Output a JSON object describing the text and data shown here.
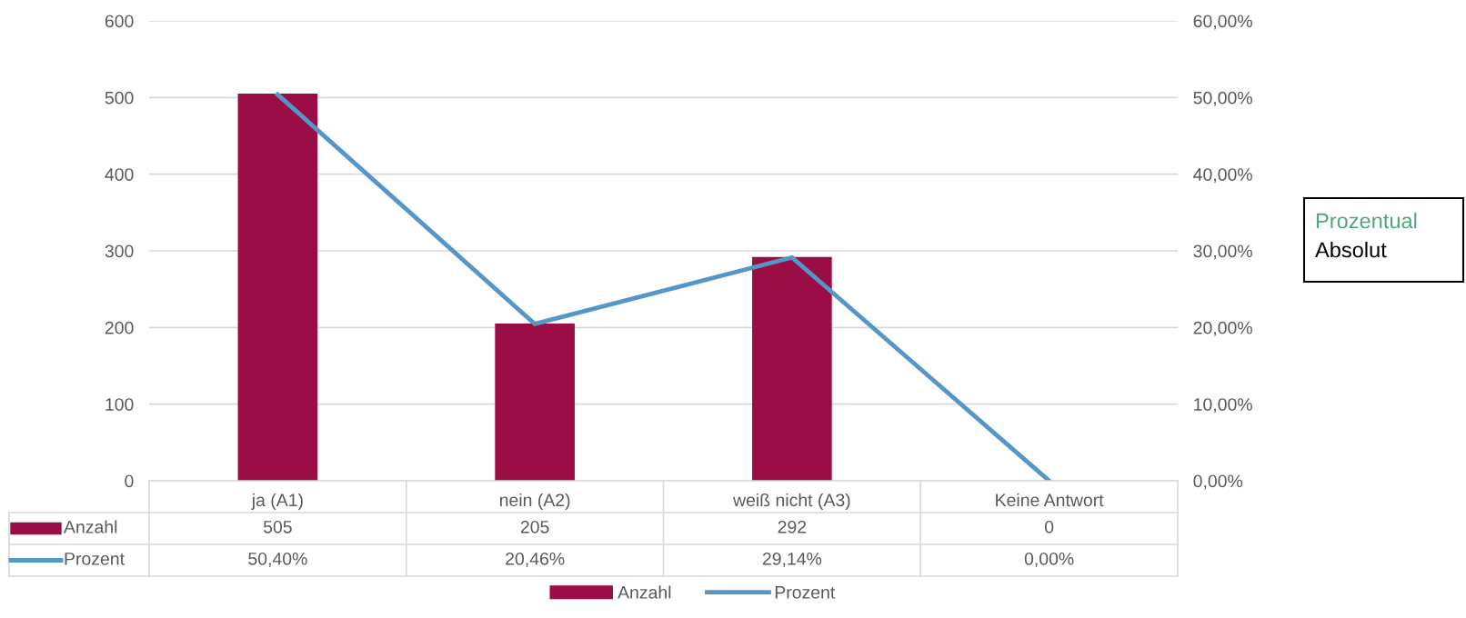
{
  "chart_data": {
    "type": "bar",
    "categories": [
      "ja (A1)",
      "nein (A2)",
      "weiß nicht (A3)",
      "Keine Antwort"
    ],
    "series": [
      {
        "name": "Anzahl",
        "color": "#9b0d45",
        "values": [
          505,
          205,
          292,
          0
        ],
        "value_labels": [
          "505",
          "205",
          "292",
          "0"
        ]
      },
      {
        "name": "Prozent",
        "type": "line",
        "axis": "y2",
        "color": "#5596c9",
        "values": [
          50.4,
          20.46,
          29.14,
          0.0
        ],
        "value_labels": [
          "50,40%",
          "20,46%",
          "29,14%",
          "0,00%"
        ]
      }
    ],
    "ylim": [
      0,
      600
    ],
    "yticks": [
      0,
      100,
      200,
      300,
      400,
      500,
      600
    ],
    "y2lim": [
      0,
      60
    ],
    "y2ticks": [
      {
        "value": 0,
        "label": "0,00%"
      },
      {
        "value": 10,
        "label": "10,00%"
      },
      {
        "value": 20,
        "label": "20,00%"
      },
      {
        "value": 30,
        "label": "30,00%"
      },
      {
        "value": 40,
        "label": "40,00%"
      },
      {
        "value": 50,
        "label": "50,00%"
      },
      {
        "value": 60,
        "label": "60,00%"
      }
    ],
    "grid": "y",
    "legend": "bottom",
    "marker": "none",
    "line_style": "solid",
    "annotations": [
      "Prozentual",
      "Absolut"
    ]
  }
}
